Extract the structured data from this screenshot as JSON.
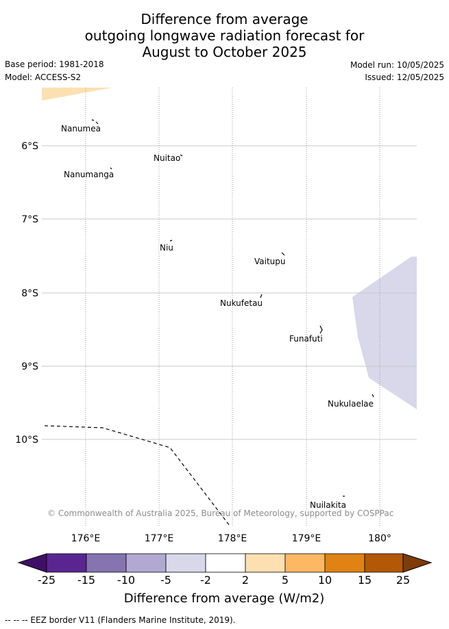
{
  "title": {
    "line1": "Difference from average",
    "line2": "outgoing longwave radiation forecast for",
    "line3": "August to October 2025"
  },
  "meta": {
    "base_period": "Base period: 1981-2018",
    "model": "Model: ACCESS-S2",
    "model_run": "Model run: 10/05/2025",
    "issued": "Issued: 12/05/2025"
  },
  "map": {
    "lat_labels": [
      "6°S",
      "7°S",
      "8°S",
      "9°S",
      "10°S"
    ],
    "lon_labels": [
      "176°E",
      "177°E",
      "178°E",
      "179°E",
      "180°"
    ],
    "places": [
      {
        "name": "Nanumea"
      },
      {
        "name": "Nuitao"
      },
      {
        "name": "Nanumanga"
      },
      {
        "name": "Niu"
      },
      {
        "name": "Vaitupu"
      },
      {
        "name": "Nukufetau"
      },
      {
        "name": "Funafuti"
      },
      {
        "name": "Nukulaelae"
      },
      {
        "name": "Nuilakita"
      }
    ],
    "copyright": "© Commonwealth of Australia 2025, Bureau of Meteorology, supported by COSPPac",
    "anomaly_regions": [
      {
        "category": "2 to 5",
        "color": "#fde0b2"
      },
      {
        "category": "-5 to -2",
        "color": "#d8d8ea"
      }
    ]
  },
  "colorbar": {
    "ticks": [
      "-25",
      "-15",
      "-10",
      "-5",
      "-2",
      "2",
      "5",
      "10",
      "15",
      "25"
    ],
    "colors": [
      "#3f0f68",
      "#5a2590",
      "#8574b0",
      "#b1a9d2",
      "#d8d8ea",
      "#ffffff",
      "#fde0b2",
      "#fdb863",
      "#e08214",
      "#b35806",
      "#7f3b08"
    ],
    "label": "Difference from average (W/m2)"
  },
  "footnote": "--  --  -- EEZ border V11 (Flanders Marine Institute, 2019)."
}
